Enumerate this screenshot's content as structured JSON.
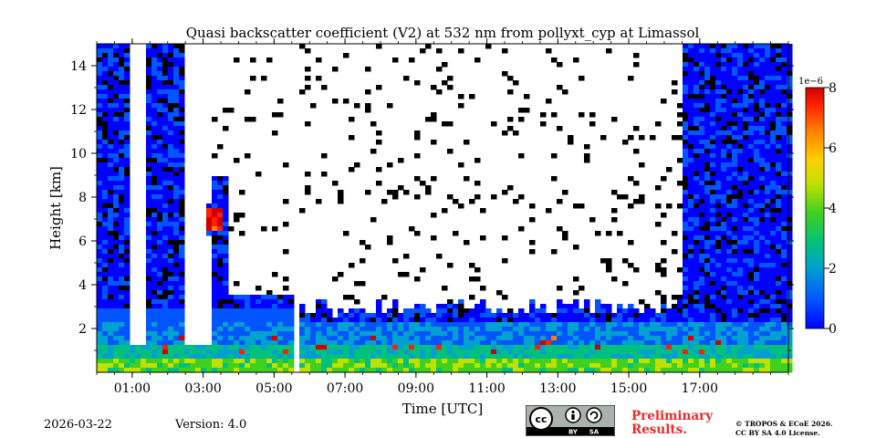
{
  "chart_data": {
    "type": "heatmap",
    "title": "Quasi backscatter coefficient (V2) at 532 nm from pollyxt_cyp at Limassol",
    "xlabel": "Time [UTC]",
    "ylabel": "Height [km]",
    "xlim_hours": [
      0,
      19.5
    ],
    "ylim": [
      0,
      15
    ],
    "x_ticks": [
      {
        "hour": 1,
        "label": "01:00"
      },
      {
        "hour": 3,
        "label": "03:00"
      },
      {
        "hour": 5,
        "label": "05:00"
      },
      {
        "hour": 7,
        "label": "07:00"
      },
      {
        "hour": 9,
        "label": "09:00"
      },
      {
        "hour": 11,
        "label": "11:00"
      },
      {
        "hour": 13,
        "label": "13:00"
      },
      {
        "hour": 15,
        "label": "15:00"
      },
      {
        "hour": 17,
        "label": "17:00"
      }
    ],
    "y_ticks": [
      {
        "value": 2,
        "label": "2"
      },
      {
        "value": 4,
        "label": "4"
      },
      {
        "value": 6,
        "label": "6"
      },
      {
        "value": 8,
        "label": "8"
      },
      {
        "value": 10,
        "label": "10"
      },
      {
        "value": 12,
        "label": "12"
      },
      {
        "value": 14,
        "label": "14"
      }
    ],
    "colorbar": {
      "range": [
        0,
        8
      ],
      "exponent_label": "1e−6",
      "ticks": [
        {
          "value": 0,
          "label": "0"
        },
        {
          "value": 2,
          "label": "2"
        },
        {
          "value": 4,
          "label": "4"
        },
        {
          "value": 6,
          "label": "6"
        },
        {
          "value": 8,
          "label": "8"
        }
      ],
      "colormap": [
        "#0000ff",
        "#0055ff",
        "#00a0d0",
        "#00c080",
        "#40d020",
        "#c0e000",
        "#ffd000",
        "#ff8000",
        "#ff2000",
        "#d00000"
      ]
    },
    "no_data_intervals_hours": [
      [
        5.62,
        5.72
      ]
    ],
    "white_columns_hours": [
      [
        1.0,
        1.4
      ],
      [
        2.45,
        3.3
      ]
    ],
    "features": [
      {
        "name": "boundary layer aerosol",
        "time_hours": [
          0,
          19.5
        ],
        "height_km": [
          0,
          2.5
        ],
        "approx_value_e6": 2.5
      },
      {
        "name": "elevated plume",
        "time_hours": [
          3.1,
          3.6
        ],
        "height_km": [
          6.5,
          7.5
        ],
        "approx_value_e6": 7
      }
    ]
  },
  "footer": {
    "date": "2026-03-22",
    "version": "Version: 4.0",
    "preliminary": "Preliminary\nResults.",
    "copyright_line1": "© TROPOS & ECoE 2026.",
    "copyright_line2": "CC BY SA 4.0 License.",
    "license_badge": {
      "cc": "cc",
      "by": "BY",
      "sa": "SA"
    }
  }
}
